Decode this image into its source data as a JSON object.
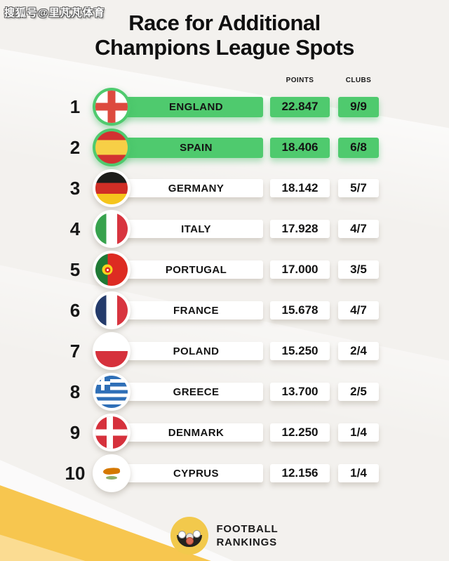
{
  "watermark": "搜狐号@里芃芃体育",
  "title": {
    "line1": "Race for Additional",
    "line2": "Champions League Spots"
  },
  "table": {
    "headers": {
      "points": "POINTS",
      "clubs": "CLUBS"
    },
    "rows": [
      {
        "rank": "1",
        "country": "ENGLAND",
        "points": "22.847",
        "clubs": "9/9",
        "flag": "england",
        "highlighted": true
      },
      {
        "rank": "2",
        "country": "SPAIN",
        "points": "18.406",
        "clubs": "6/8",
        "flag": "spain",
        "highlighted": true
      },
      {
        "rank": "3",
        "country": "GERMANY",
        "points": "18.142",
        "clubs": "5/7",
        "flag": "germany",
        "highlighted": false
      },
      {
        "rank": "4",
        "country": "ITALY",
        "points": "17.928",
        "clubs": "4/7",
        "flag": "italy",
        "highlighted": false
      },
      {
        "rank": "5",
        "country": "PORTUGAL",
        "points": "17.000",
        "clubs": "3/5",
        "flag": "portugal",
        "highlighted": false
      },
      {
        "rank": "6",
        "country": "FRANCE",
        "points": "15.678",
        "clubs": "4/7",
        "flag": "france",
        "highlighted": false
      },
      {
        "rank": "7",
        "country": "POLAND",
        "points": "15.250",
        "clubs": "2/4",
        "flag": "poland",
        "highlighted": false
      },
      {
        "rank": "8",
        "country": "GREECE",
        "points": "13.700",
        "clubs": "2/5",
        "flag": "greece",
        "highlighted": false
      },
      {
        "rank": "9",
        "country": "DENMARK",
        "points": "12.250",
        "clubs": "1/4",
        "flag": "denmark",
        "highlighted": false
      },
      {
        "rank": "10",
        "country": "CYPRUS",
        "points": "12.156",
        "clubs": "1/4",
        "flag": "cyprus",
        "highlighted": false
      }
    ]
  },
  "footer": {
    "line1": "FOOTBALL",
    "line2": "RANKINGS"
  },
  "colors": {
    "highlight_green": "#4fca6e",
    "accent_gold": "#f7c64f",
    "accent_light_yellow": "#fbdc92",
    "background": "#f3f1ee",
    "text": "#141414",
    "logo_yellow": "#f2c94c"
  },
  "chart_data": {
    "type": "table",
    "title": "Race for Additional Champions League Spots",
    "columns": [
      "Rank",
      "Country",
      "Points",
      "Clubs"
    ],
    "rows": [
      [
        1,
        "England",
        22.847,
        "9/9"
      ],
      [
        2,
        "Spain",
        18.406,
        "6/8"
      ],
      [
        3,
        "Germany",
        18.142,
        "5/7"
      ],
      [
        4,
        "Italy",
        17.928,
        "4/7"
      ],
      [
        5,
        "Portugal",
        17.0,
        "3/5"
      ],
      [
        6,
        "France",
        15.678,
        "4/7"
      ],
      [
        7,
        "Poland",
        15.25,
        "2/4"
      ],
      [
        8,
        "Greece",
        13.7,
        "2/5"
      ],
      [
        9,
        "Denmark",
        12.25,
        "1/4"
      ],
      [
        10,
        "Cyprus",
        12.156,
        "1/4"
      ]
    ],
    "highlighted_ranks": [
      1,
      2
    ]
  }
}
